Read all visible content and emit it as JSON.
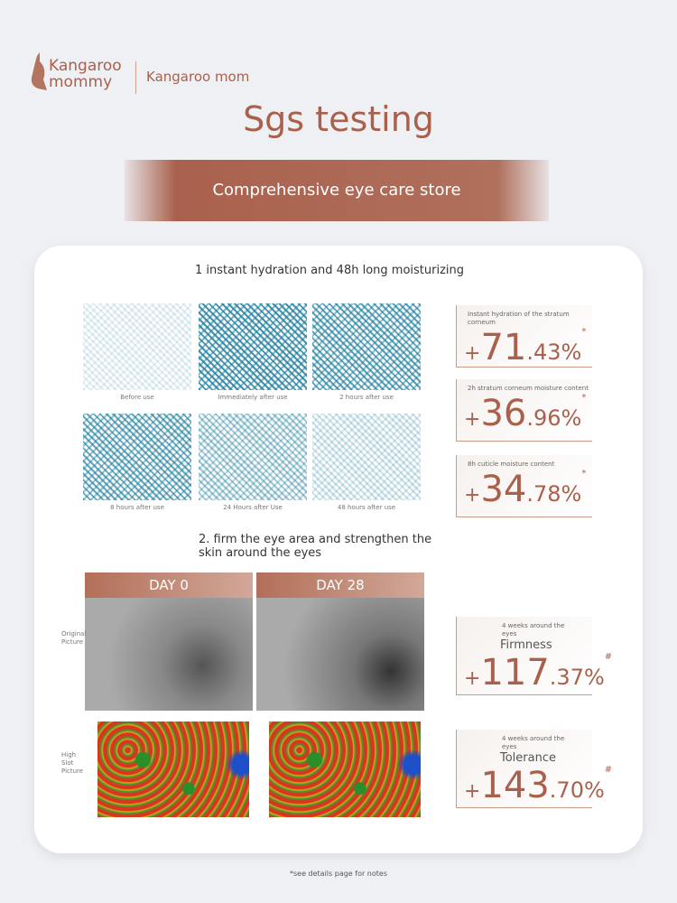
{
  "logo": {
    "line1": "Kangaroo",
    "line2": "mommy",
    "brand": "Kangaroo mom"
  },
  "header": {
    "title": "Sgs testing",
    "banner": "Comprehensive eye care store"
  },
  "section1": {
    "title": "1 instant hydration and 48h long moisturizing",
    "images": [
      "Before use",
      "Immediately after use",
      "2 hours after use",
      "8 hours after use",
      "24 Hours after Use",
      "48 hours after use"
    ],
    "stats": [
      {
        "label": "Instant hydration of the stratum corneum",
        "sign": "+",
        "int": "71",
        "dec": ".43%",
        "mark": "*"
      },
      {
        "label": "2h stratum corneum moisture content",
        "sign": "+",
        "int": "36",
        "dec": ".96%",
        "mark": "*"
      },
      {
        "label": "8h cuticle moisture content",
        "sign": "+",
        "int": "34",
        "dec": ".78%",
        "mark": "*"
      }
    ]
  },
  "section2": {
    "title": "2. firm the eye area and strengthen the skin around the eyes",
    "days": [
      "DAY 0",
      "DAY 28"
    ],
    "rows": [
      "Original Picture",
      "High Slot Picture"
    ],
    "stats": [
      {
        "label": "4 weeks around the eyes",
        "name": "Firmness",
        "sign": "+",
        "int": "117",
        "dec": ".37%",
        "mark": "#"
      },
      {
        "label": "4 weeks around the eyes",
        "name": "Tolerance",
        "sign": "+",
        "int": "143",
        "dec": ".70%",
        "mark": "#"
      }
    ]
  },
  "footer": {
    "note": "*see details page for notes"
  }
}
